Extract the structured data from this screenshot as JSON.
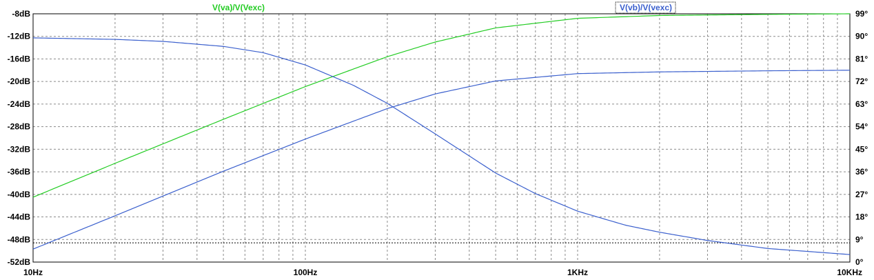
{
  "chart_data": {
    "type": "line",
    "x_scale": "log",
    "xlim_hz": [
      10,
      10000
    ],
    "x_ticks": [
      {
        "value": 10,
        "label": "10Hz"
      },
      {
        "value": 100,
        "label": "100Hz"
      },
      {
        "value": 1000,
        "label": "1KHz"
      },
      {
        "value": 10000,
        "label": "10KHz"
      }
    ],
    "ylim_left_db": [
      -52,
      -8
    ],
    "y_ticks_left": [
      "-8dB",
      "-12dB",
      "-16dB",
      "-20dB",
      "-24dB",
      "-28dB",
      "-32dB",
      "-36dB",
      "-40dB",
      "-44dB",
      "-48dB",
      "-52dB"
    ],
    "ylim_right_deg": [
      0,
      99
    ],
    "y_ticks_right": [
      "99°",
      "90°",
      "81°",
      "72°",
      "63°",
      "54°",
      "45°",
      "36°",
      "27°",
      "18°",
      "9°",
      "0°"
    ],
    "grid": true,
    "series": [
      {
        "name": "V(va)/V(Vexc)",
        "color": "#22cc22",
        "axis": "left",
        "unit": "dB",
        "x": [
          10,
          20,
          50,
          100,
          200,
          300,
          500,
          1000,
          2000,
          5000,
          10000
        ],
        "y": [
          -40.5,
          -34.5,
          -26.7,
          -20.9,
          -15.6,
          -13.0,
          -10.5,
          -8.8,
          -8.3,
          -8.1,
          -8.0
        ]
      },
      {
        "name": "V(vb)/V(vexc)",
        "color": "#3a5fcd",
        "axis": "left",
        "unit": "dB",
        "x": [
          10,
          20,
          50,
          100,
          200,
          300,
          500,
          1000,
          2000,
          5000,
          10000
        ],
        "y": [
          -49.7,
          -43.8,
          -35.9,
          -30.2,
          -24.8,
          -22.2,
          -19.9,
          -18.6,
          -18.3,
          -18.1,
          -18.0
        ]
      },
      {
        "name": "",
        "color": "#3a5fcd",
        "axis": "right",
        "unit": "deg",
        "x": [
          10,
          20,
          30,
          50,
          70,
          100,
          150,
          200,
          300,
          500,
          700,
          1000,
          1500,
          2000,
          3000,
          5000,
          10000
        ],
        "y": [
          89.4,
          88.8,
          88.0,
          86.0,
          83.5,
          78.6,
          70.5,
          63.3,
          51.1,
          35.5,
          27.3,
          20.3,
          14.7,
          11.9,
          8.6,
          5.4,
          3.0
        ]
      }
    ],
    "cursor_level_db": -48.6
  }
}
